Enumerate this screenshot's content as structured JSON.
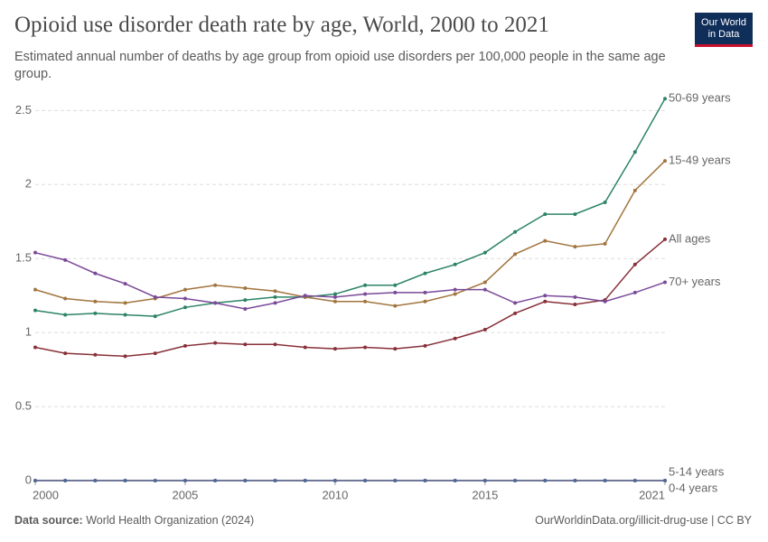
{
  "chart_data": {
    "type": "line",
    "title": "Opioid use disorder death rate by age, World, 2000 to 2021",
    "subtitle": "Estimated annual number of deaths by age group from opioid use disorders per 100,000 people in the same age group.",
    "x": [
      2000,
      2001,
      2002,
      2003,
      2004,
      2005,
      2006,
      2007,
      2008,
      2009,
      2010,
      2011,
      2012,
      2013,
      2014,
      2015,
      2016,
      2017,
      2018,
      2019,
      2020,
      2021
    ],
    "xlim": [
      2000,
      2021
    ],
    "xticks": [
      2000,
      2005,
      2010,
      2015,
      2021
    ],
    "ylim": [
      0,
      2.6
    ],
    "yticks": [
      0,
      0.5,
      1,
      1.5,
      2,
      2.5
    ],
    "grid": true,
    "series": [
      {
        "name": "50-69 years",
        "color": "#2c8465",
        "values": [
          1.15,
          1.12,
          1.13,
          1.12,
          1.11,
          1.17,
          1.2,
          1.22,
          1.24,
          1.24,
          1.26,
          1.32,
          1.32,
          1.4,
          1.46,
          1.54,
          1.68,
          1.8,
          1.8,
          1.88,
          2.22,
          2.58
        ]
      },
      {
        "name": "15-49 years",
        "color": "#a2753f",
        "values": [
          1.29,
          1.23,
          1.21,
          1.2,
          1.23,
          1.29,
          1.32,
          1.3,
          1.28,
          1.24,
          1.21,
          1.21,
          1.18,
          1.21,
          1.26,
          1.34,
          1.53,
          1.62,
          1.58,
          1.6,
          1.96,
          2.16
        ]
      },
      {
        "name": "All ages",
        "color": "#883039",
        "values": [
          0.9,
          0.86,
          0.85,
          0.84,
          0.86,
          0.91,
          0.93,
          0.92,
          0.92,
          0.9,
          0.89,
          0.9,
          0.89,
          0.91,
          0.96,
          1.02,
          1.13,
          1.21,
          1.19,
          1.22,
          1.46,
          1.63
        ]
      },
      {
        "name": "70+ years",
        "color": "#7a4a99",
        "values": [
          1.54,
          1.49,
          1.4,
          1.33,
          1.24,
          1.23,
          1.2,
          1.16,
          1.2,
          1.25,
          1.24,
          1.26,
          1.27,
          1.27,
          1.29,
          1.29,
          1.2,
          1.25,
          1.24,
          1.21,
          1.27,
          1.34
        ]
      },
      {
        "name": "5-14 years",
        "color": "#b13507",
        "values": [
          0,
          0,
          0,
          0,
          0,
          0,
          0,
          0,
          0,
          0,
          0,
          0,
          0,
          0,
          0,
          0,
          0,
          0,
          0,
          0,
          0,
          0
        ]
      },
      {
        "name": "0-4 years",
        "color": "#4c6a9c",
        "values": [
          0,
          0,
          0,
          0,
          0,
          0,
          0,
          0,
          0,
          0,
          0,
          0,
          0,
          0,
          0,
          0,
          0,
          0,
          0,
          0,
          0,
          0
        ]
      }
    ]
  },
  "logo": {
    "line1": "Our World",
    "line2": "in Data"
  },
  "footer": {
    "source_label": "Data source:",
    "source": "World Health Organization (2024)",
    "credit": "OurWorldinData.org/illicit-drug-use | CC BY"
  }
}
